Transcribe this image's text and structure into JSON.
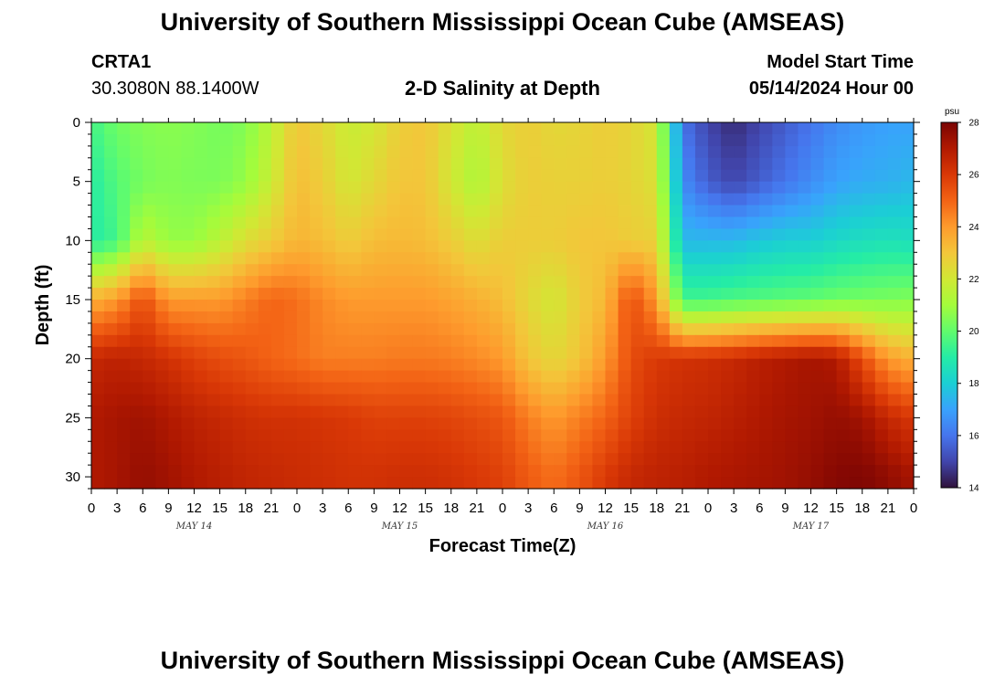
{
  "header": {
    "title": "University of Southern Mississippi Ocean Cube (AMSEAS)",
    "station_id": "CRTA1",
    "station_coords": "30.3080N  88.1400W",
    "subtitle": "2-D Salinity at Depth",
    "model_start_label": "Model Start Time",
    "model_start_value": "05/14/2024 Hour 00"
  },
  "footer": {
    "title": "University of Southern Mississippi Ocean Cube (AMSEAS)"
  },
  "colors": {
    "colormap": [
      "#30123b",
      "#4145ab",
      "#4675ed",
      "#39a2fc",
      "#1bcfd4",
      "#24eca6",
      "#61fc6c",
      "#a4fc3b",
      "#d1e834",
      "#f3c63a",
      "#fe9b2d",
      "#f36315",
      "#d93806",
      "#b11901",
      "#7a0403"
    ]
  },
  "chart_data": {
    "type": "heatmap",
    "title": "2-D Salinity at Depth",
    "xlabel": "Forecast Time(Z)",
    "ylabel": "Depth (ft)",
    "x_hours_range": [
      0,
      96
    ],
    "x_tick_labels": [
      "0",
      "3",
      "6",
      "9",
      "12",
      "15",
      "18",
      "21",
      "0",
      "3",
      "6",
      "9",
      "12",
      "15",
      "18",
      "21",
      "0",
      "3",
      "6",
      "9",
      "12",
      "15",
      "18",
      "21",
      "0",
      "3",
      "6",
      "9",
      "12",
      "15",
      "18",
      "21",
      "0"
    ],
    "day_labels": [
      {
        "label": "MAY 14",
        "hour": 12
      },
      {
        "label": "MAY 15",
        "hour": 36
      },
      {
        "label": "MAY 16",
        "hour": 60
      },
      {
        "label": "MAY 17",
        "hour": 84
      }
    ],
    "ylim": [
      0,
      31
    ],
    "y_inverted": true,
    "y_ticks": [
      0,
      5,
      10,
      15,
      20,
      25,
      30
    ],
    "colorbar": {
      "label": "psu",
      "range": [
        14,
        28
      ],
      "ticks": [
        14,
        16,
        18,
        20,
        22,
        24,
        26,
        28
      ]
    },
    "depths_ft": [
      0,
      5,
      10,
      15,
      20,
      25,
      30
    ],
    "time_hours": [
      0,
      3,
      6,
      9,
      12,
      15,
      18,
      21,
      24,
      27,
      30,
      33,
      36,
      39,
      42,
      45,
      48,
      51,
      54,
      57,
      60,
      63,
      66,
      69,
      72,
      75,
      78,
      81,
      84,
      87,
      90,
      93,
      96
    ],
    "salinity": [
      [
        19.5,
        20.2,
        20.5,
        20.6,
        20.5,
        20.3,
        20.5,
        21.5,
        23.0,
        22.5,
        21.8,
        22.0,
        22.8,
        23.0,
        22.2,
        21.5,
        22.5,
        22.8,
        22.5,
        22.6,
        22.8,
        22.6,
        22.0,
        16.0,
        15.0,
        14.5,
        15.0,
        15.5,
        16.0,
        16.5,
        16.8,
        17.0,
        17.0
      ],
      [
        19.0,
        19.8,
        20.3,
        20.5,
        20.4,
        20.4,
        20.8,
        21.8,
        23.2,
        22.8,
        22.0,
        22.5,
        23.0,
        23.0,
        22.0,
        21.2,
        22.3,
        22.8,
        22.7,
        22.7,
        22.8,
        22.6,
        22.2,
        16.5,
        15.5,
        15.0,
        15.5,
        16.0,
        16.5,
        17.0,
        17.2,
        17.3,
        17.5
      ],
      [
        19.0,
        19.5,
        21.5,
        20.8,
        20.8,
        21.5,
        22.3,
        22.8,
        23.4,
        23.2,
        22.8,
        23.2,
        23.3,
        23.2,
        22.8,
        22.3,
        22.8,
        22.8,
        22.8,
        23.0,
        23.0,
        22.8,
        22.7,
        17.5,
        17.5,
        17.5,
        17.8,
        18.0,
        18.0,
        18.3,
        18.5,
        18.6,
        18.5
      ],
      [
        23.5,
        24.0,
        25.5,
        24.0,
        24.0,
        24.0,
        24.5,
        25.0,
        24.8,
        24.3,
        24.0,
        24.0,
        24.0,
        24.0,
        23.8,
        23.5,
        23.2,
        22.5,
        22.0,
        22.8,
        23.3,
        25.5,
        24.0,
        19.5,
        19.5,
        19.7,
        19.8,
        19.9,
        20.0,
        20.2,
        20.3,
        20.4,
        20.5
      ],
      [
        26.5,
        26.7,
        26.5,
        26.2,
        25.8,
        25.5,
        25.3,
        25.0,
        24.8,
        24.5,
        24.5,
        24.5,
        24.6,
        24.6,
        24.5,
        24.3,
        24.0,
        23.0,
        22.5,
        23.0,
        24.0,
        25.5,
        26.0,
        26.2,
        26.3,
        26.5,
        26.8,
        27.0,
        27.2,
        27.0,
        25.5,
        24.0,
        23.5
      ],
      [
        27.0,
        27.2,
        27.3,
        27.0,
        26.7,
        26.5,
        26.3,
        26.2,
        26.2,
        26.1,
        26.0,
        25.8,
        25.8,
        25.8,
        25.7,
        25.5,
        25.3,
        24.5,
        24.0,
        24.5,
        25.0,
        25.8,
        26.3,
        26.5,
        26.6,
        26.8,
        27.0,
        27.2,
        27.3,
        27.5,
        27.3,
        26.5,
        26.0
      ],
      [
        27.0,
        27.2,
        27.5,
        27.3,
        27.0,
        26.8,
        26.6,
        26.5,
        26.4,
        26.3,
        26.2,
        26.2,
        26.3,
        26.3,
        26.2,
        26.0,
        25.8,
        25.2,
        24.8,
        25.3,
        26.0,
        26.5,
        26.7,
        26.8,
        27.0,
        27.1,
        27.2,
        27.3,
        27.5,
        27.8,
        27.9,
        27.6,
        27.2
      ]
    ]
  }
}
